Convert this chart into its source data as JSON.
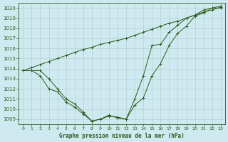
{
  "background_color": "#ceeaf0",
  "grid_color": "#b0c8cc",
  "line_color": "#2d5a1b",
  "marker_color": "#2d5a1b",
  "xlabel": "Graphe pression niveau de la mer (hPa)",
  "ylim": [
    1008.5,
    1020.5
  ],
  "xlim": [
    -0.5,
    23.5
  ],
  "yticks": [
    1009,
    1010,
    1011,
    1012,
    1013,
    1014,
    1015,
    1016,
    1017,
    1018,
    1019,
    1020
  ],
  "xticks": [
    0,
    1,
    2,
    3,
    4,
    5,
    6,
    7,
    8,
    9,
    10,
    11,
    12,
    13,
    14,
    15,
    16,
    17,
    18,
    19,
    20,
    21,
    22,
    23
  ],
  "series1": {
    "x": [
      0,
      1,
      2,
      3,
      4,
      5,
      6,
      7,
      8,
      9,
      10,
      11,
      12,
      13,
      14,
      15,
      16,
      17,
      18,
      19,
      20,
      21,
      22,
      23
    ],
    "y": [
      1013.8,
      1013.8,
      1013.8,
      1013.0,
      1012.0,
      1011.0,
      1010.5,
      1009.7,
      1008.8,
      1009.0,
      1009.3,
      1009.2,
      1009.0,
      1010.4,
      1011.1,
      1013.3,
      1014.5,
      1016.3,
      1017.5,
      1018.2,
      1019.2,
      1019.5,
      1020.0,
      1020.0
    ]
  },
  "series2": {
    "x": [
      0,
      1,
      2,
      3,
      4,
      5,
      6,
      7,
      8,
      9,
      10,
      11,
      12,
      13,
      14,
      15,
      16,
      17,
      18,
      19,
      20,
      21,
      22,
      23
    ],
    "y": [
      1013.8,
      1013.8,
      1013.3,
      1012.0,
      1011.7,
      1010.7,
      1010.2,
      1009.5,
      1008.8,
      1009.0,
      1009.4,
      1009.1,
      1009.0,
      1011.0,
      1013.3,
      1016.3,
      1016.4,
      1017.6,
      1018.3,
      1019.0,
      1019.3,
      1019.8,
      1020.0,
      1020.2
    ]
  },
  "series3": {
    "x": [
      0,
      1,
      2,
      3,
      4,
      5,
      6,
      7,
      8,
      9,
      10,
      11,
      12,
      13,
      14,
      15,
      16,
      17,
      18,
      19,
      20,
      21,
      22,
      23
    ],
    "y": [
      1013.8,
      1014.1,
      1014.4,
      1014.7,
      1015.0,
      1015.3,
      1015.6,
      1015.9,
      1016.1,
      1016.4,
      1016.6,
      1016.8,
      1017.0,
      1017.3,
      1017.6,
      1017.9,
      1018.2,
      1018.5,
      1018.7,
      1019.0,
      1019.3,
      1019.6,
      1019.8,
      1020.1
    ]
  }
}
